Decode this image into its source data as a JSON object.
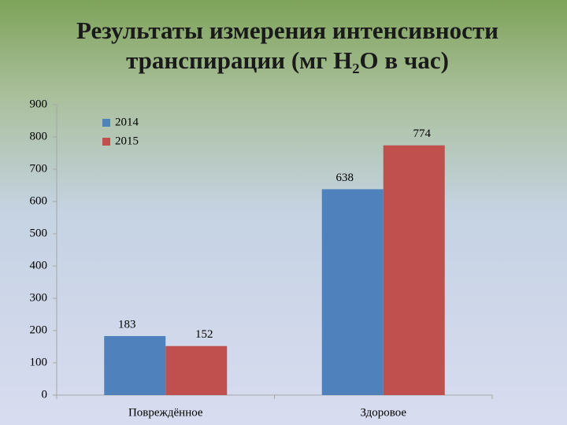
{
  "chart_data": {
    "type": "bar",
    "title": "Результаты измерения интенсивности транспирации (мг H₂O в час)",
    "categories": [
      "Повреждённое",
      "Здоровое"
    ],
    "series": [
      {
        "name": "2014",
        "color": "#4f81bd",
        "values": [
          183,
          638
        ]
      },
      {
        "name": "2015",
        "color": "#c0504d",
        "values": [
          152,
          774
        ]
      }
    ],
    "ylim": [
      0,
      900
    ],
    "yticks": [
      0,
      100,
      200,
      300,
      400,
      500,
      600,
      700,
      800,
      900
    ],
    "grid": false,
    "legend": "top-left"
  }
}
